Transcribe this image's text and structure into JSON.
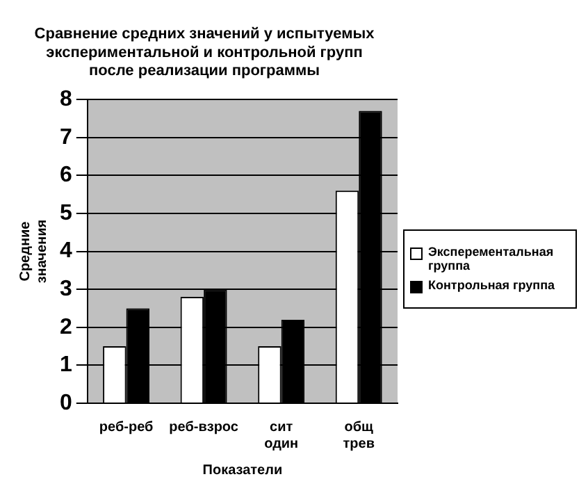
{
  "chart_data": {
    "type": "bar",
    "title": "Сравнение средних значений у испытуемых экспериментальной и контрольной групп после реализации программы",
    "xlabel": "Показатели",
    "ylabel": "Средние значения",
    "categories": [
      "реб-реб",
      "реб-взрос",
      "сит один",
      "общ трев"
    ],
    "series": [
      {
        "name": "Эксперементальная группа",
        "color": "#ffffff",
        "values": [
          1.5,
          2.8,
          1.5,
          5.6
        ]
      },
      {
        "name": "Контрольная группа",
        "color": "#000000",
        "values": [
          2.5,
          3.0,
          2.2,
          7.7
        ]
      }
    ],
    "ylim": [
      0,
      8
    ],
    "yticks": [
      0,
      1,
      2,
      3,
      4,
      5,
      6,
      7,
      8
    ],
    "grid": "y",
    "legend": "right"
  }
}
